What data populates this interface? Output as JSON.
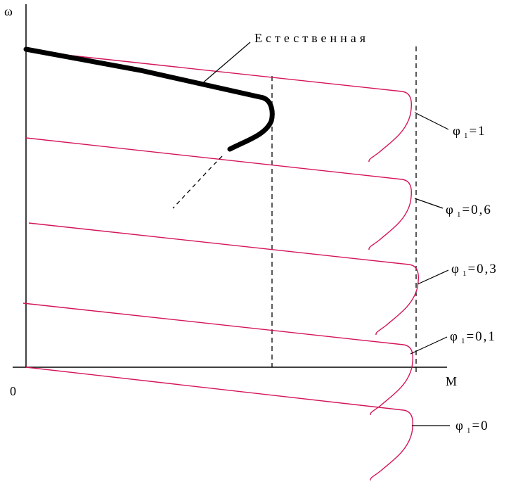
{
  "axes": {
    "y_label": "ω",
    "x_label": "M",
    "origin_label": "0"
  },
  "natural_curve": {
    "label": "Естественная"
  },
  "curves": [
    {
      "phi": "φ",
      "sub": "1",
      "value": "=1"
    },
    {
      "phi": "φ",
      "sub": "1",
      "value": "=0,6"
    },
    {
      "phi": "φ",
      "sub": "1",
      "value": "=0,3"
    },
    {
      "phi": "φ",
      "sub": "1",
      "value": "=0,1"
    },
    {
      "phi": "φ",
      "sub": "1",
      "value": "=0"
    }
  ],
  "colors": {
    "curve": "#d4145a",
    "natural": "#000000",
    "axis": "#000000"
  }
}
